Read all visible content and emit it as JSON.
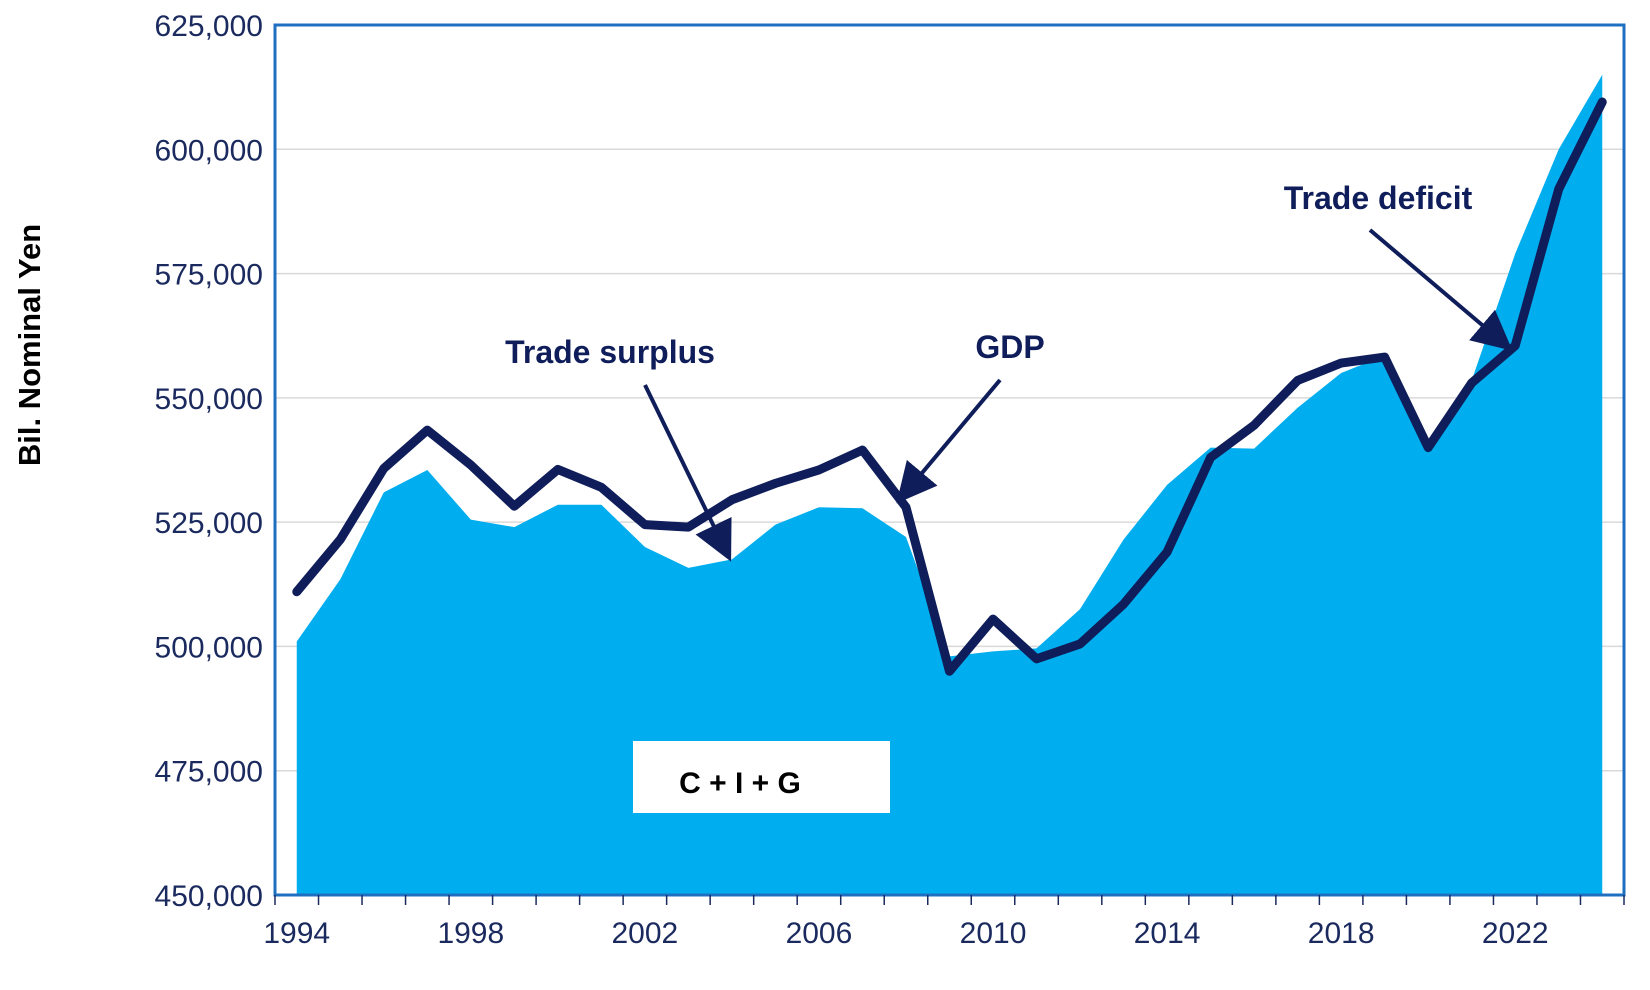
{
  "chart_data": {
    "type": "area",
    "ylabel": "Bil. Nominal Yen",
    "xlabel": "",
    "ylim": [
      450000,
      625000
    ],
    "yticks": [
      "450,000",
      "475,000",
      "500,000",
      "525,000",
      "550,000",
      "575,000",
      "600,000",
      "625,000"
    ],
    "ytick_values": [
      450000,
      475000,
      500000,
      525000,
      550000,
      575000,
      600000,
      625000
    ],
    "xticks": [
      "1994",
      "1998",
      "2002",
      "2006",
      "2010",
      "2014",
      "2018",
      "2022"
    ],
    "xtick_values": [
      1994,
      1998,
      2002,
      2006,
      2010,
      2014,
      2018,
      2022
    ],
    "xlim": [
      1993.5,
      2024.5
    ],
    "x": [
      1994,
      1995,
      1996,
      1997,
      1998,
      1999,
      2000,
      2001,
      2002,
      2003,
      2004,
      2005,
      2006,
      2007,
      2008,
      2009,
      2010,
      2011,
      2012,
      2013,
      2014,
      2015,
      2016,
      2017,
      2018,
      2019,
      2020,
      2021,
      2022,
      2023,
      2024
    ],
    "series": [
      {
        "name": "C + I + G",
        "style": "area",
        "color": "#00aeef",
        "values": [
          501000,
          513500,
          531000,
          535500,
          525500,
          524000,
          528500,
          528500,
          520000,
          515800,
          517500,
          524500,
          528000,
          527800,
          522000,
          498000,
          499000,
          499600,
          507500,
          521500,
          532500,
          540000,
          539800,
          548000,
          555000,
          558500,
          539800,
          553500,
          579000,
          600000,
          615000
        ]
      },
      {
        "name": "GDP",
        "style": "line",
        "color": "#0f1e5a",
        "values": [
          511000,
          521500,
          535800,
          543500,
          536500,
          528200,
          535600,
          532000,
          524500,
          524000,
          529500,
          532800,
          535500,
          539500,
          528000,
          495000,
          505500,
          497500,
          500500,
          508500,
          519000,
          538000,
          544500,
          553500,
          557000,
          558200,
          540000,
          553000,
          560500,
          592000,
          609500
        ]
      }
    ],
    "annotations": [
      {
        "text": "Trade surplus",
        "arrow_to": [
          2003.9,
          518500
        ]
      },
      {
        "text": "GDP",
        "arrow_to": [
          2007.9,
          530000
        ]
      },
      {
        "text": "Trade deficit",
        "arrow_to": [
          2021.8,
          560500
        ]
      }
    ],
    "box_label": "C + I + G",
    "grid": "horizontal",
    "colors": {
      "area": "#00aeef",
      "line": "#0f1e5a",
      "frame": "#1f6fc0",
      "text": "#1b2a5e",
      "grid": "#d9d9d9",
      "box": "#ffffff"
    }
  }
}
